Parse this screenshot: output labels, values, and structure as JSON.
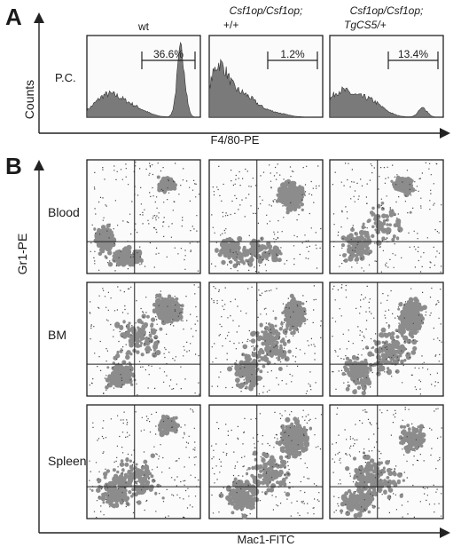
{
  "figure": {
    "panel_a": {
      "letter": "A",
      "y_axis_label": "Counts",
      "pc_label": "P.C.",
      "x_axis_label": "F4/80-PE",
      "histograms": [
        {
          "title_main": "wt",
          "title_sub": "",
          "percent": "36.6%"
        },
        {
          "title_main": "Csf1op/Csf1op;",
          "title_sub": "+/+",
          "percent": "1.2%"
        },
        {
          "title_main": "Csf1op/Csf1op;",
          "title_sub": "TgCS5/+",
          "percent": "13.4%"
        }
      ]
    },
    "panel_b": {
      "letter": "B",
      "y_axis_label": "Gr1-PE",
      "x_axis_label": "Mac1-FITC",
      "rows": [
        {
          "label": "Blood"
        },
        {
          "label": "BM"
        },
        {
          "label": "Spleen"
        }
      ]
    },
    "colors": {
      "ink": "#1a1a1a",
      "population": "#8c8c8c",
      "frame": "#222222"
    }
  }
}
